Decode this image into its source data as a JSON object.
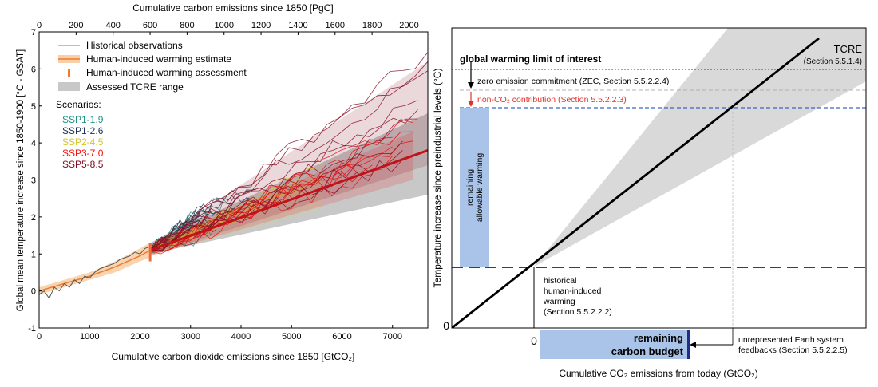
{
  "left_panel": {
    "top_axis_title": "Cumulative carbon emissions since 1850 [PgC]",
    "bottom_axis_title": "Cumulative carbon dioxide emissions since 1850 [GtCO₂]",
    "y_axis_title": "Global mean temperature increase since 1850-1900 [°C - GSAT]",
    "legend": {
      "historical": "Historical observations",
      "estimate": "Human-induced warming estimate",
      "assessment": "Human-induced warming assessment",
      "tcre": "Assessed TCRE range",
      "scenarios_heading": "Scenarios:",
      "scenarios": [
        {
          "name": "SSP1-1.9",
          "color": "#1e9583"
        },
        {
          "name": "SSP1-2.6",
          "color": "#1d3354"
        },
        {
          "name": "SSP2-4.5",
          "color": "#eadd3d"
        },
        {
          "name": "SSP3-7.0",
          "color": "#f21111"
        },
        {
          "name": "SSP5-8.5",
          "color": "#840b22"
        }
      ]
    }
  },
  "right_panel": {
    "x_axis_title": "Cumulative CO₂ emissions from today (GtCO₂)",
    "y_axis_title": "Temperature increase since preindustrial levels (°C)",
    "origin_y": "0",
    "origin_x": "0",
    "tcre_label": "TCRE",
    "tcre_section": "(Section 5.5.1.4)",
    "limit_label": "global warming limit of interest",
    "zec_label": "zero emission commitment (ZEC, Section 5.5.2.2.4)",
    "nonco2_label": "non-CO₂ contribution (Section 5.5.2.2.3)",
    "remaining_warming_1": "remaining",
    "remaining_warming_2": "allowable warming",
    "historical_1": "historical",
    "historical_2": "human-induced",
    "historical_3": "warming",
    "historical_4": "(Section 5.5.2.2.2)",
    "budget_1": "remaining",
    "budget_2": "carbon budget",
    "feedback_1": "unrepresented Earth system",
    "feedback_2": "feedbacks (Section 5.5.2.2.5)",
    "colors": {
      "budget": "#a9c4e8",
      "budget_edge": "#1d2f8c",
      "nonco2": "#e0322a",
      "blue_dash": "#3a66c9",
      "gray": "#d9d9d9"
    }
  },
  "chart_data": [
    {
      "type": "line",
      "title": "",
      "xlabel": "Cumulative carbon dioxide emissions since 1850 [GtCO₂]",
      "ylabel": "Global mean temperature increase since 1850-1900 [°C - GSAT]",
      "xlim": [
        0,
        7700
      ],
      "ylim": [
        -1,
        7
      ],
      "x_ticks": [
        0,
        1000,
        2000,
        3000,
        4000,
        5000,
        6000,
        7000
      ],
      "y_ticks": [
        -1,
        0,
        1,
        2,
        3,
        4,
        5,
        6,
        7
      ],
      "secondary_x_label": "Cumulative carbon emissions since 1850 [PgC]",
      "secondary_x_ticks": [
        0,
        200,
        400,
        600,
        800,
        1000,
        1200,
        1400,
        1600,
        1800,
        2000
      ],
      "grid": false,
      "legend_position": "top-left",
      "historical_observations": {
        "x": [
          0,
          100,
          200,
          300,
          400,
          500,
          600,
          700,
          800,
          900,
          1000,
          1100,
          1200,
          1300,
          1400,
          1500,
          1600,
          1700,
          1800,
          1900,
          2000,
          2100,
          2200
        ],
        "y": [
          -0.1,
          0.0,
          -0.2,
          0.1,
          0.0,
          0.2,
          0.1,
          0.3,
          0.2,
          0.4,
          0.35,
          0.5,
          0.6,
          0.65,
          0.7,
          0.75,
          0.85,
          0.9,
          0.95,
          1.05,
          1.0,
          1.15,
          1.2
        ]
      },
      "human_induced_estimate": {
        "x": [
          0,
          500,
          1000,
          1500,
          2000,
          2200
        ],
        "y": [
          0.0,
          0.2,
          0.4,
          0.65,
          0.95,
          1.1
        ],
        "band_low": [
          -0.1,
          0.1,
          0.3,
          0.5,
          0.8,
          0.9
        ],
        "band_high": [
          0.1,
          0.3,
          0.5,
          0.8,
          1.15,
          1.3
        ]
      },
      "human_induced_assessment": {
        "x": 2200,
        "y_low": 0.8,
        "y_high": 1.3
      },
      "tcre_range": {
        "x": [
          2200,
          7700
        ],
        "low": [
          1.0,
          2.6
        ],
        "high": [
          1.3,
          4.8
        ]
      },
      "scenarios": [
        {
          "name": "SSP1-1.9",
          "end_x": [
            3100,
            3450,
            3800
          ],
          "end_y": [
            1.6,
            1.9,
            2.1
          ]
        },
        {
          "name": "SSP1-2.6",
          "end_x": [
            3500,
            3900,
            4300
          ],
          "end_y": [
            1.9,
            2.2,
            2.5
          ]
        },
        {
          "name": "SSP2-4.5",
          "end_x": [
            4800,
            5200,
            5600
          ],
          "end_y": [
            2.6,
            2.9,
            3.2
          ]
        },
        {
          "name": "SSP3-7.0",
          "end_x": [
            6600,
            7000,
            7400
          ],
          "end_y": [
            3.4,
            3.9,
            4.3
          ]
        },
        {
          "name": "SSP5-8.5",
          "end_x": [
            7200,
            7500,
            7700
          ],
          "end_y": [
            3.8,
            4.9,
            6.2
          ]
        }
      ],
      "central_line": {
        "x": [
          2200,
          7700
        ],
        "y": [
          1.1,
          3.8
        ]
      }
    },
    {
      "type": "line",
      "title": "",
      "xlabel": "Cumulative CO₂ emissions from today (GtCO₂)",
      "ylabel": "Temperature increase since preindustrial levels (°C)",
      "series": [
        {
          "name": "TCRE",
          "x": [
            0,
            1
          ],
          "y": [
            0,
            1
          ]
        }
      ]
    }
  ]
}
